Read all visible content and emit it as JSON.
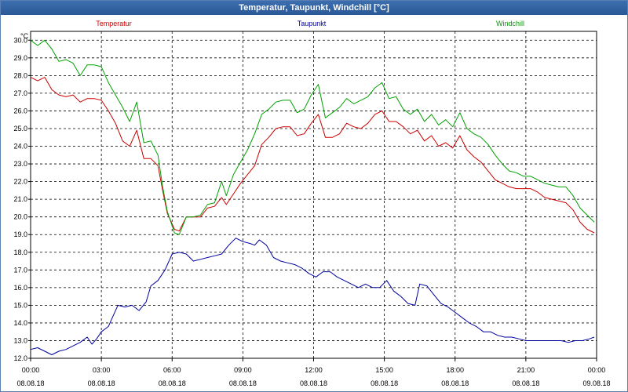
{
  "window": {
    "title": "Temperatur, Taupunkt, Windchill [°C]"
  },
  "chart_data": {
    "type": "line",
    "title": "Temperatur, Taupunkt, Windchill [°C]",
    "ylabel": "°C",
    "ylim": [
      12.0,
      30.5
    ],
    "yticks": [
      "12.0",
      "13.0",
      "14.0",
      "15.0",
      "16.0",
      "17.0",
      "18.0",
      "19.0",
      "20.0",
      "21.0",
      "22.0",
      "23.0",
      "24.0",
      "25.0",
      "26.0",
      "27.0",
      "28.0",
      "29.0",
      "30.0"
    ],
    "xlim": [
      0,
      24
    ],
    "xticks": [
      {
        "x": 0,
        "time": "00:00",
        "date": "08.08.18"
      },
      {
        "x": 3,
        "time": "03:00",
        "date": "08.08.18"
      },
      {
        "x": 6,
        "time": "06:00",
        "date": "08.08.18"
      },
      {
        "x": 9,
        "time": "09:00",
        "date": "08.08.18"
      },
      {
        "x": 12,
        "time": "12:00",
        "date": "08.08.18"
      },
      {
        "x": 15,
        "time": "15:00",
        "date": "08.08.18"
      },
      {
        "x": 18,
        "time": "18:00",
        "date": "08.08.18"
      },
      {
        "x": 21,
        "time": "21:00",
        "date": "08.08.18"
      },
      {
        "x": 24,
        "time": "00:00",
        "date": "09.08.18"
      }
    ],
    "grid": true,
    "legend": "top",
    "series": [
      {
        "name": "Temperatur",
        "color": "#cc0000",
        "points": [
          [
            0,
            27.9
          ],
          [
            0.3,
            27.7
          ],
          [
            0.6,
            27.9
          ],
          [
            0.9,
            27.2
          ],
          [
            1.2,
            26.9
          ],
          [
            1.5,
            26.8
          ],
          [
            1.8,
            26.9
          ],
          [
            2.1,
            26.5
          ],
          [
            2.4,
            26.7
          ],
          [
            2.7,
            26.7
          ],
          [
            3.0,
            26.6
          ],
          [
            3.3,
            26.0
          ],
          [
            3.6,
            25.3
          ],
          [
            3.9,
            24.3
          ],
          [
            4.2,
            24.0
          ],
          [
            4.5,
            24.9
          ],
          [
            4.8,
            23.3
          ],
          [
            5.1,
            23.3
          ],
          [
            5.4,
            22.9
          ],
          [
            5.6,
            21.5
          ],
          [
            5.8,
            20.2
          ],
          [
            6.1,
            19.3
          ],
          [
            6.3,
            19.2
          ],
          [
            6.6,
            20.0
          ],
          [
            6.9,
            20.0
          ],
          [
            7.2,
            20.0
          ],
          [
            7.5,
            20.5
          ],
          [
            7.8,
            20.6
          ],
          [
            8.1,
            21.1
          ],
          [
            8.3,
            20.7
          ],
          [
            8.6,
            21.3
          ],
          [
            8.9,
            21.9
          ],
          [
            9.2,
            22.4
          ],
          [
            9.5,
            22.9
          ],
          [
            9.8,
            24.1
          ],
          [
            10.1,
            24.5
          ],
          [
            10.4,
            25.0
          ],
          [
            10.7,
            25.1
          ],
          [
            11.0,
            25.1
          ],
          [
            11.3,
            24.6
          ],
          [
            11.6,
            24.7
          ],
          [
            11.9,
            25.3
          ],
          [
            12.2,
            25.8
          ],
          [
            12.5,
            24.5
          ],
          [
            12.8,
            24.5
          ],
          [
            13.1,
            24.7
          ],
          [
            13.4,
            25.3
          ],
          [
            13.7,
            25.1
          ],
          [
            14.0,
            25.0
          ],
          [
            14.3,
            25.3
          ],
          [
            14.6,
            25.8
          ],
          [
            14.9,
            26.0
          ],
          [
            15.2,
            25.4
          ],
          [
            15.5,
            25.4
          ],
          [
            15.8,
            25.1
          ],
          [
            16.1,
            24.7
          ],
          [
            16.4,
            24.9
          ],
          [
            16.7,
            24.3
          ],
          [
            17.0,
            24.6
          ],
          [
            17.3,
            24.0
          ],
          [
            17.6,
            24.2
          ],
          [
            17.9,
            23.9
          ],
          [
            18.2,
            24.6
          ],
          [
            18.5,
            23.8
          ],
          [
            18.8,
            23.4
          ],
          [
            19.1,
            23.1
          ],
          [
            19.4,
            22.6
          ],
          [
            19.7,
            22.1
          ],
          [
            20.0,
            21.9
          ],
          [
            20.3,
            21.7
          ],
          [
            20.6,
            21.6
          ],
          [
            20.9,
            21.6
          ],
          [
            21.2,
            21.6
          ],
          [
            21.5,
            21.4
          ],
          [
            21.8,
            21.1
          ],
          [
            22.1,
            21.0
          ],
          [
            22.4,
            20.9
          ],
          [
            22.7,
            20.8
          ],
          [
            23.0,
            20.4
          ],
          [
            23.3,
            19.7
          ],
          [
            23.6,
            19.3
          ],
          [
            23.9,
            19.1
          ]
        ]
      },
      {
        "name": "Taupunkt",
        "color": "#00009c",
        "points": [
          [
            0,
            12.5
          ],
          [
            0.3,
            12.6
          ],
          [
            0.6,
            12.4
          ],
          [
            0.9,
            12.2
          ],
          [
            1.2,
            12.4
          ],
          [
            1.5,
            12.5
          ],
          [
            1.8,
            12.7
          ],
          [
            2.1,
            12.9
          ],
          [
            2.4,
            13.2
          ],
          [
            2.6,
            12.8
          ],
          [
            2.8,
            13.1
          ],
          [
            3.0,
            13.5
          ],
          [
            3.3,
            13.8
          ],
          [
            3.5,
            14.4
          ],
          [
            3.7,
            15.0
          ],
          [
            4.0,
            14.9
          ],
          [
            4.3,
            15.0
          ],
          [
            4.6,
            14.7
          ],
          [
            4.9,
            15.2
          ],
          [
            5.1,
            16.1
          ],
          [
            5.4,
            16.4
          ],
          [
            5.7,
            17.0
          ],
          [
            6.0,
            17.9
          ],
          [
            6.3,
            18.0
          ],
          [
            6.6,
            17.9
          ],
          [
            6.9,
            17.5
          ],
          [
            7.2,
            17.6
          ],
          [
            7.5,
            17.7
          ],
          [
            7.8,
            17.8
          ],
          [
            8.1,
            17.9
          ],
          [
            8.4,
            18.4
          ],
          [
            8.7,
            18.8
          ],
          [
            9.0,
            18.6
          ],
          [
            9.3,
            18.5
          ],
          [
            9.5,
            18.4
          ],
          [
            9.7,
            18.7
          ],
          [
            10.0,
            18.4
          ],
          [
            10.3,
            17.7
          ],
          [
            10.6,
            17.5
          ],
          [
            10.9,
            17.4
          ],
          [
            11.2,
            17.3
          ],
          [
            11.5,
            17.1
          ],
          [
            11.8,
            16.8
          ],
          [
            12.1,
            16.6
          ],
          [
            12.4,
            16.9
          ],
          [
            12.7,
            16.9
          ],
          [
            13.0,
            16.6
          ],
          [
            13.3,
            16.4
          ],
          [
            13.6,
            16.2
          ],
          [
            13.9,
            16.0
          ],
          [
            14.2,
            16.2
          ],
          [
            14.5,
            16.0
          ],
          [
            14.8,
            16.0
          ],
          [
            15.1,
            16.4
          ],
          [
            15.4,
            15.8
          ],
          [
            15.7,
            15.5
          ],
          [
            16.0,
            15.1
          ],
          [
            16.3,
            15.0
          ],
          [
            16.5,
            16.2
          ],
          [
            16.8,
            16.1
          ],
          [
            17.1,
            15.6
          ],
          [
            17.4,
            15.1
          ],
          [
            17.7,
            14.9
          ],
          [
            18.0,
            14.6
          ],
          [
            18.3,
            14.3
          ],
          [
            18.6,
            14.0
          ],
          [
            18.9,
            13.8
          ],
          [
            19.2,
            13.5
          ],
          [
            19.5,
            13.5
          ],
          [
            19.8,
            13.3
          ],
          [
            20.1,
            13.2
          ],
          [
            20.4,
            13.2
          ],
          [
            20.7,
            13.1
          ],
          [
            21.0,
            13.0
          ],
          [
            21.3,
            13.0
          ],
          [
            21.6,
            13.0
          ],
          [
            21.9,
            13.0
          ],
          [
            22.2,
            13.0
          ],
          [
            22.5,
            13.0
          ],
          [
            22.8,
            12.9
          ],
          [
            23.1,
            13.0
          ],
          [
            23.4,
            13.0
          ],
          [
            23.7,
            13.1
          ],
          [
            23.9,
            13.2
          ]
        ]
      },
      {
        "name": "Windchill",
        "color": "#00a000",
        "points": [
          [
            0,
            30.0
          ],
          [
            0.3,
            29.7
          ],
          [
            0.6,
            30.0
          ],
          [
            0.9,
            29.5
          ],
          [
            1.2,
            28.8
          ],
          [
            1.5,
            28.9
          ],
          [
            1.8,
            28.7
          ],
          [
            2.1,
            28.0
          ],
          [
            2.4,
            28.6
          ],
          [
            2.7,
            28.6
          ],
          [
            3.0,
            28.5
          ],
          [
            3.3,
            27.6
          ],
          [
            3.6,
            26.9
          ],
          [
            3.9,
            26.2
          ],
          [
            4.2,
            25.4
          ],
          [
            4.5,
            26.5
          ],
          [
            4.8,
            24.2
          ],
          [
            5.1,
            24.3
          ],
          [
            5.4,
            23.5
          ],
          [
            5.6,
            21.7
          ],
          [
            5.8,
            20.3
          ],
          [
            6.1,
            19.1
          ],
          [
            6.3,
            19.0
          ],
          [
            6.6,
            20.0
          ],
          [
            6.9,
            20.0
          ],
          [
            7.2,
            20.1
          ],
          [
            7.5,
            20.7
          ],
          [
            7.8,
            20.8
          ],
          [
            8.1,
            22.0
          ],
          [
            8.3,
            21.2
          ],
          [
            8.6,
            22.4
          ],
          [
            8.9,
            23.1
          ],
          [
            9.2,
            23.8
          ],
          [
            9.5,
            24.7
          ],
          [
            9.8,
            25.8
          ],
          [
            10.1,
            26.1
          ],
          [
            10.4,
            26.5
          ],
          [
            10.7,
            26.6
          ],
          [
            11.0,
            26.6
          ],
          [
            11.3,
            25.9
          ],
          [
            11.6,
            26.1
          ],
          [
            11.9,
            26.9
          ],
          [
            12.2,
            27.5
          ],
          [
            12.5,
            25.6
          ],
          [
            12.8,
            25.9
          ],
          [
            13.1,
            26.2
          ],
          [
            13.4,
            26.7
          ],
          [
            13.7,
            26.4
          ],
          [
            14.0,
            26.6
          ],
          [
            14.3,
            26.8
          ],
          [
            14.6,
            27.3
          ],
          [
            14.9,
            27.6
          ],
          [
            15.2,
            26.7
          ],
          [
            15.5,
            26.8
          ],
          [
            15.8,
            26.1
          ],
          [
            16.1,
            25.8
          ],
          [
            16.4,
            26.1
          ],
          [
            16.7,
            25.4
          ],
          [
            17.0,
            25.8
          ],
          [
            17.3,
            25.2
          ],
          [
            17.6,
            25.5
          ],
          [
            17.9,
            25.1
          ],
          [
            18.2,
            25.9
          ],
          [
            18.5,
            25.0
          ],
          [
            18.8,
            24.7
          ],
          [
            19.1,
            24.5
          ],
          [
            19.4,
            24.1
          ],
          [
            19.7,
            23.5
          ],
          [
            20.0,
            23.0
          ],
          [
            20.3,
            22.6
          ],
          [
            20.6,
            22.5
          ],
          [
            20.9,
            22.3
          ],
          [
            21.2,
            22.3
          ],
          [
            21.5,
            22.1
          ],
          [
            21.8,
            21.9
          ],
          [
            22.1,
            21.8
          ],
          [
            22.4,
            21.7
          ],
          [
            22.7,
            21.7
          ],
          [
            23.0,
            21.2
          ],
          [
            23.3,
            20.5
          ],
          [
            23.6,
            20.1
          ],
          [
            23.9,
            19.7
          ]
        ]
      }
    ]
  }
}
